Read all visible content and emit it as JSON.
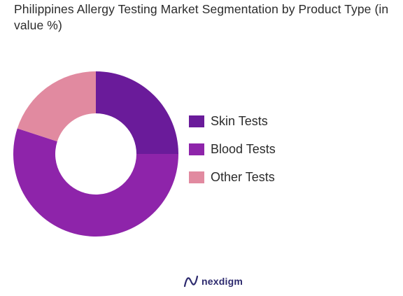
{
  "chart_data": {
    "type": "donut",
    "title": "Philippines Allergy Testing Market Segmentation by Product Type (in value %)",
    "categories": [
      "Skin Tests",
      "Blood Tests",
      "Other Tests"
    ],
    "values": [
      25,
      55,
      20
    ],
    "colors": [
      "#6a1b9a",
      "#8e24aa",
      "#e18aa0"
    ],
    "legend_position": "right"
  },
  "brand": {
    "name": "nexdigm",
    "logo_icon": "nexdigm-logo-icon",
    "color": "#2d2a6e"
  }
}
